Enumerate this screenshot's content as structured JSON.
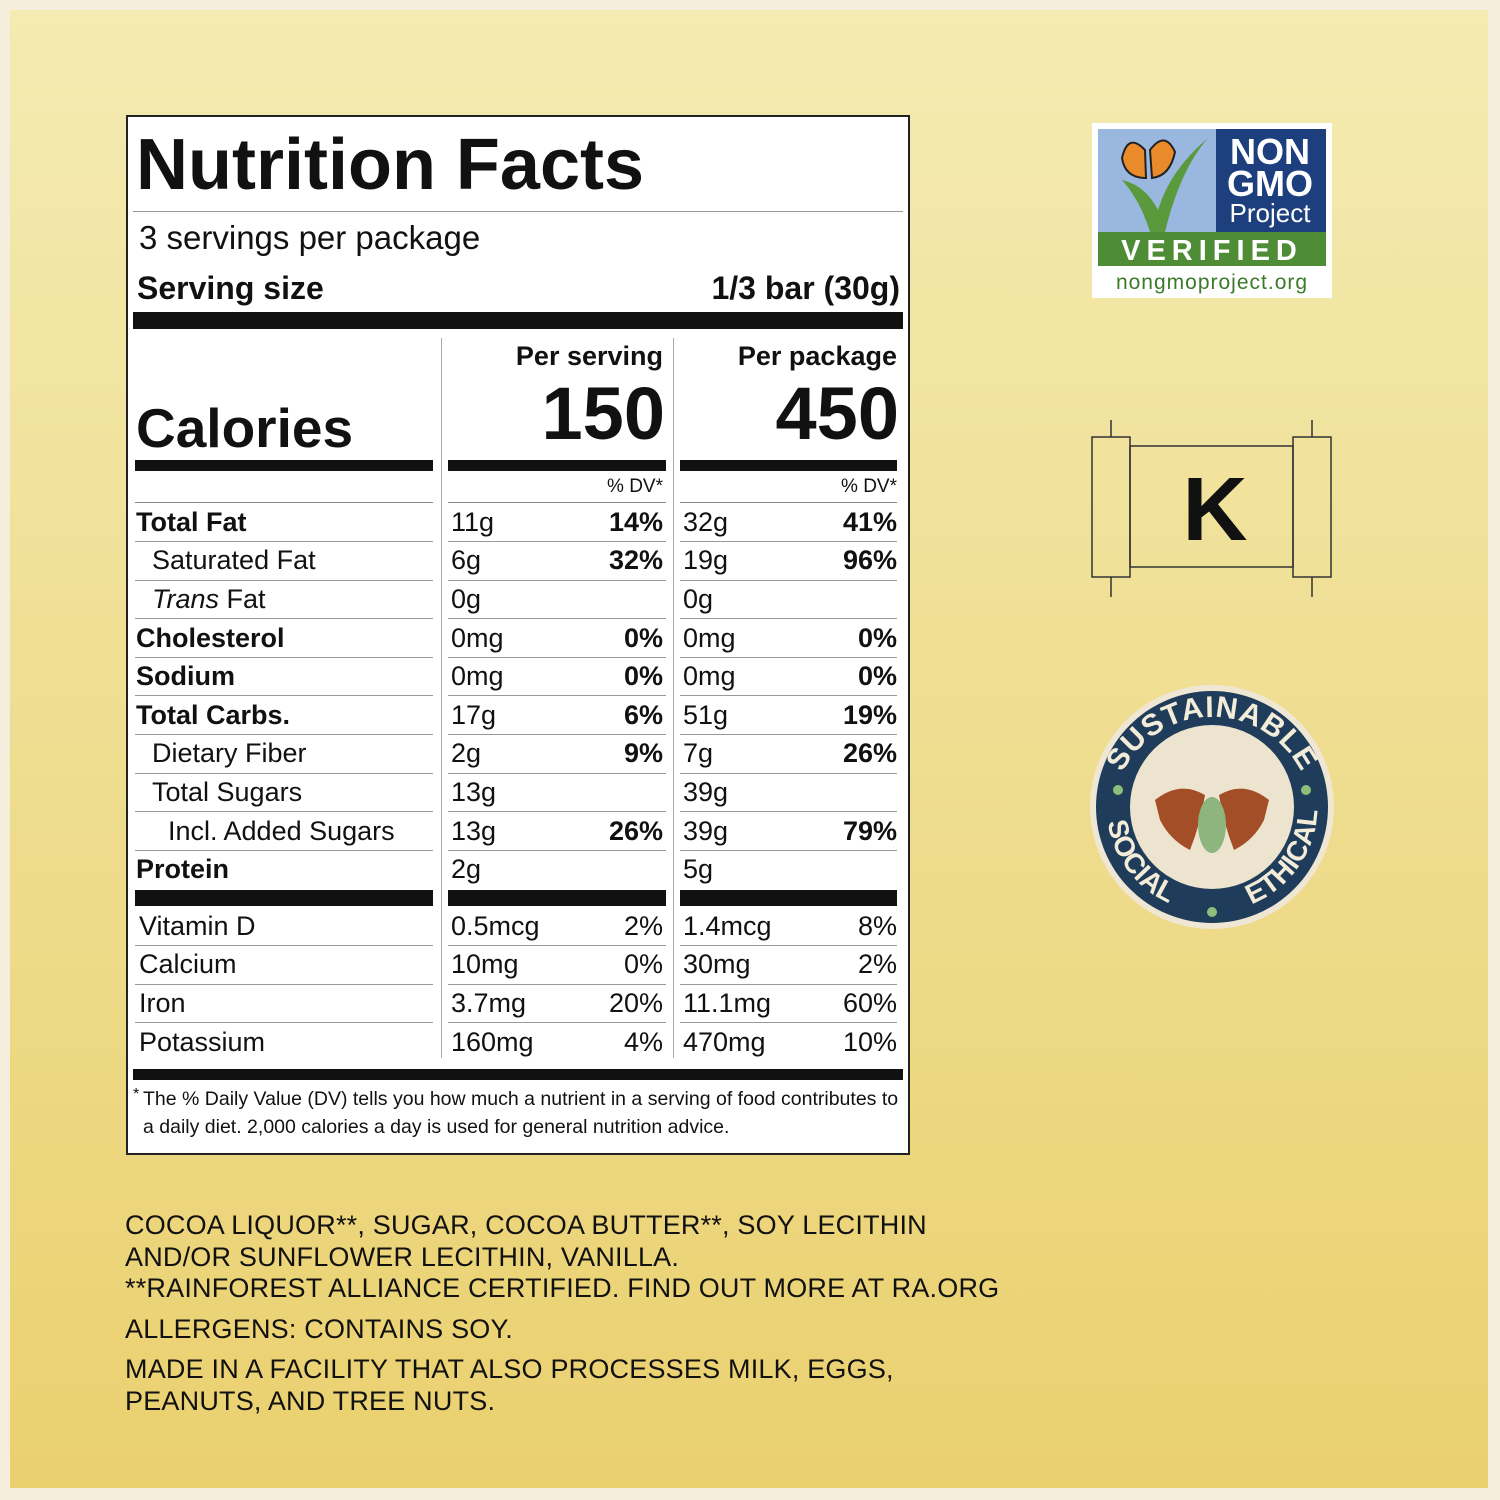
{
  "nutrition": {
    "title": "Nutrition Facts",
    "servings": "3 servings per package",
    "serving_size_label": "Serving size",
    "serving_size": "1/3 bar (30g)",
    "calories_label": "Calories",
    "columns": [
      {
        "header": "Per serving",
        "calories": "150",
        "dv_header": "% DV*"
      },
      {
        "header": "Per package",
        "calories": "450",
        "dv_header": "% DV*"
      }
    ],
    "rows": [
      {
        "name": "Total Fat",
        "values": [
          [
            "11g",
            "14%"
          ],
          [
            "32g",
            "41%"
          ]
        ],
        "sub": [
          {
            "name": "Saturated Fat",
            "values": [
              [
                "6g",
                "32%"
              ],
              [
                "19g",
                "96%"
              ]
            ]
          },
          {
            "name_prefix": "Trans",
            "name": "Fat",
            "values": [
              [
                "0g"
              ],
              [
                "0g"
              ]
            ]
          }
        ]
      },
      {
        "name": "Cholesterol",
        "values": [
          [
            "0mg",
            "0%"
          ],
          [
            "0mg",
            "0%"
          ]
        ]
      },
      {
        "name": "Sodium",
        "values": [
          [
            "0mg",
            "0%"
          ],
          [
            "0mg",
            "0%"
          ]
        ]
      },
      {
        "name": "Total Carbs.",
        "values": [
          [
            "17g",
            "6%"
          ],
          [
            "51g",
            "19%"
          ]
        ],
        "sub": [
          {
            "name": "Dietary Fiber",
            "values": [
              [
                "2g",
                "9%"
              ],
              [
                "7g",
                "26%"
              ]
            ]
          },
          {
            "name": "Total Sugars",
            "values": [
              [
                "13g"
              ],
              [
                "39g"
              ]
            ],
            "sub": [
              {
                "name": "Incl. Added Sugars",
                "values": [
                  [
                    "13g",
                    "26%"
                  ],
                  [
                    "39g",
                    "79%"
                  ]
                ]
              }
            ]
          }
        ]
      },
      {
        "name": "Protein",
        "values": [
          [
            "2g"
          ],
          [
            "5g"
          ]
        ]
      }
    ],
    "vitamins": [
      {
        "name": "Vitamin D",
        "values": [
          [
            "0.5mcg",
            "2%"
          ],
          [
            "1.4mcg",
            "8%"
          ]
        ]
      },
      {
        "name": "Calcium",
        "values": [
          [
            "10mg",
            "0%"
          ],
          [
            "30mg",
            "2%"
          ]
        ]
      },
      {
        "name": "Iron",
        "values": [
          [
            "3.7mg",
            "20%"
          ],
          [
            "11.1mg",
            "60%"
          ]
        ]
      },
      {
        "name": "Potassium",
        "values": [
          [
            "160mg",
            "4%"
          ],
          [
            "470mg",
            "10%"
          ]
        ]
      }
    ],
    "footnote_mark": "*",
    "footnote": "The % Daily Value (DV) tells you how much a nutrient in a serving of food contributes to a daily diet. 2,000 calories a day is used for general nutrition advice."
  },
  "ingredients": [
    "COCOA LIQUOR**, SUGAR, COCOA BUTTER**, SOY LECITHIN",
    "AND/OR SUNFLOWER LECITHIN, VANILLA.",
    "**RAINFOREST ALLIANCE CERTIFIED. FIND OUT MORE AT RA.ORG"
  ],
  "allergens": "ALLERGENS: CONTAINS SOY.",
  "facility": [
    "MADE IN A FACILITY THAT ALSO PROCESSES MILK, EGGS,",
    "PEANUTS, AND TREE NUTS."
  ],
  "badges": {
    "non_gmo": {
      "lines": [
        "NON",
        "GMO",
        "Project"
      ],
      "verified": "VERIFIED",
      "url": "nongmoproject.org"
    },
    "kosher": "K",
    "sustainable": {
      "top": "SUSTAINABLE",
      "left": "SOCIAL",
      "right": "ETHICAL"
    }
  }
}
